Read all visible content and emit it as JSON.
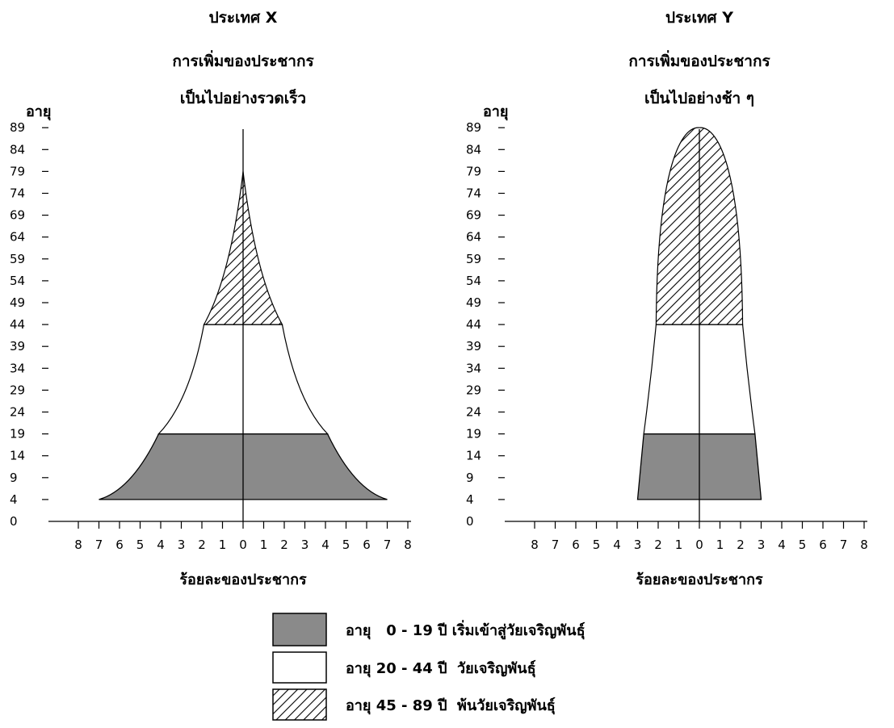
{
  "chart_data": [
    {
      "type": "area",
      "title": "ประเทศ X",
      "subtitle": [
        "การเพิ่มของประชากร",
        "เป็นไปอย่างรวดเร็ว"
      ],
      "ylabel": "อายุ",
      "xlabel": "ร้อยละของประชากร",
      "y_ticks": [
        "0",
        "4",
        "9",
        "14",
        "19",
        "24",
        "29",
        "34",
        "39",
        "44",
        "49",
        "54",
        "59",
        "64",
        "69",
        "74",
        "79",
        "84",
        "89"
      ],
      "x_ticks": [
        "8",
        "7",
        "6",
        "5",
        "4",
        "3",
        "2",
        "1",
        "0",
        "1",
        "2",
        "3",
        "4",
        "5",
        "6",
        "7",
        "8"
      ],
      "xlim": [
        -8,
        8
      ],
      "ylim": [
        0,
        89
      ],
      "series": [
        {
          "age": 4,
          "percent": 7.0
        },
        {
          "age": 19,
          "percent": 4.1
        },
        {
          "age": 44,
          "percent": 1.9
        },
        {
          "age": 79,
          "percent": 0.0
        }
      ]
    },
    {
      "type": "area",
      "title": "ประเทศ Y",
      "subtitle": [
        "การเพิ่มของประชากร",
        "เป็นไปอย่างช้า ๆ"
      ],
      "ylabel": "อายุ",
      "xlabel": "ร้อยละของประชากร",
      "y_ticks": [
        "0",
        "4",
        "9",
        "14",
        "19",
        "24",
        "29",
        "34",
        "39",
        "44",
        "49",
        "54",
        "59",
        "64",
        "69",
        "74",
        "79",
        "84",
        "89"
      ],
      "x_ticks": [
        "8",
        "7",
        "6",
        "5",
        "4",
        "3",
        "2",
        "1",
        "0",
        "1",
        "2",
        "3",
        "4",
        "5",
        "6",
        "7",
        "8"
      ],
      "xlim": [
        -8,
        8
      ],
      "ylim": [
        0,
        89
      ],
      "series": [
        {
          "age": 4,
          "percent": 3.0
        },
        {
          "age": 19,
          "percent": 2.7
        },
        {
          "age": 44,
          "percent": 2.1
        },
        {
          "age": 89,
          "percent": 0.0
        }
      ]
    }
  ],
  "legend": [
    {
      "label": "อายุ   0 - 19 ปี เริ่มเข้าสู่วัยเจริญพันธุ์",
      "fill": "#8a8a8a",
      "pattern": "solid"
    },
    {
      "label": "อายุ 20 - 44 ปี  วัยเจริญพันธุ์",
      "fill": "#ffffff",
      "pattern": "none"
    },
    {
      "label": "อายุ 45 - 89 ปี  พ้นวัยเจริญพันธุ์",
      "fill": "#ffffff",
      "pattern": "hatch"
    }
  ],
  "colors": {
    "young": "#8a8a8a",
    "line": "#000000",
    "background": "#ffffff"
  }
}
